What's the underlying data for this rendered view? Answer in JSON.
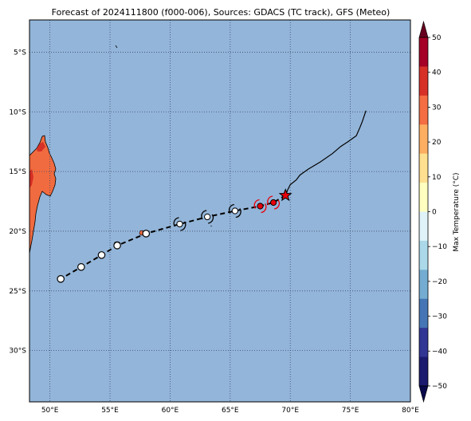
{
  "map": {
    "title": "Forecast of 2024111800 (f000-006), Sources: GDACS (TC track), GFS (Meteo)",
    "colors": {
      "ocean": "#93b5d9",
      "land_warm": "#f06b3f",
      "land_hot": "#d73027",
      "grid": "#3c4b6e",
      "track": "#000000",
      "current_marker": "#e8000b"
    },
    "extent": {
      "lon": [
        48.3,
        80
      ],
      "lat": [
        -34.3,
        -2.3
      ]
    },
    "lon_ticks": [
      {
        "value": 50,
        "label": "50°E"
      },
      {
        "value": 55,
        "label": "55°E"
      },
      {
        "value": 60,
        "label": "60°E"
      },
      {
        "value": 65,
        "label": "65°E"
      },
      {
        "value": 70,
        "label": "70°E"
      },
      {
        "value": 75,
        "label": "75°E"
      },
      {
        "value": 80,
        "label": "80°E"
      }
    ],
    "lat_ticks": [
      {
        "value": -5,
        "label": "5°S"
      },
      {
        "value": -10,
        "label": "10°S"
      },
      {
        "value": -15,
        "label": "15°S"
      },
      {
        "value": -20,
        "label": "20°S"
      },
      {
        "value": -25,
        "label": "25°S"
      },
      {
        "value": -30,
        "label": "30°S"
      }
    ],
    "observed_track": [
      [
        76.3,
        -9.9
      ],
      [
        76.0,
        -10.8
      ],
      [
        75.8,
        -11.3
      ],
      [
        75.5,
        -12.0
      ],
      [
        74.8,
        -12.5
      ],
      [
        74.2,
        -12.9
      ],
      [
        73.5,
        -13.5
      ],
      [
        72.5,
        -14.2
      ],
      [
        71.5,
        -14.8
      ],
      [
        70.8,
        -15.3
      ],
      [
        70.5,
        -15.7
      ],
      [
        70.0,
        -16.1
      ],
      [
        69.8,
        -16.5
      ],
      [
        69.6,
        -17.0
      ]
    ],
    "forecast_track": [
      [
        69.6,
        -17.0
      ],
      [
        68.6,
        -17.6
      ],
      [
        67.5,
        -17.9
      ],
      [
        65.4,
        -18.3
      ],
      [
        63.1,
        -18.8
      ],
      [
        60.8,
        -19.4
      ],
      [
        58.0,
        -20.2
      ],
      [
        55.6,
        -21.2
      ],
      [
        54.3,
        -22.0
      ],
      [
        52.6,
        -23.0
      ],
      [
        50.9,
        -24.0
      ]
    ],
    "current_position": {
      "lon": 69.6,
      "lat": -17.0,
      "symbol": "star"
    },
    "forecast_points": [
      {
        "lon": 68.6,
        "lat": -17.6,
        "category": "cyclone",
        "color": "red"
      },
      {
        "lon": 67.5,
        "lat": -17.9,
        "category": "cyclone",
        "color": "red"
      },
      {
        "lon": 65.4,
        "lat": -18.3,
        "category": "cyclone",
        "color": "white"
      },
      {
        "lon": 63.1,
        "lat": -18.8,
        "category": "cyclone",
        "color": "white"
      },
      {
        "lon": 60.8,
        "lat": -19.4,
        "category": "cyclone",
        "color": "white"
      },
      {
        "lon": 58.0,
        "lat": -20.2,
        "category": "low",
        "color": "white"
      },
      {
        "lon": 55.6,
        "lat": -21.2,
        "category": "low",
        "color": "white"
      },
      {
        "lon": 54.3,
        "lat": -22.0,
        "category": "low",
        "color": "white"
      },
      {
        "lon": 52.6,
        "lat": -23.0,
        "category": "low",
        "color": "white"
      },
      {
        "lon": 50.9,
        "lat": -24.0,
        "category": "low",
        "color": "white"
      }
    ]
  },
  "colorbar": {
    "label": "Max Temperature (°C)",
    "range": [
      -50,
      50
    ],
    "ticks": [
      "50",
      "40",
      "30",
      "20",
      "10",
      "0",
      "−10",
      "−20",
      "−30",
      "−40",
      "−50"
    ],
    "colors": [
      "#67001f",
      "#a50026",
      "#d73027",
      "#f46d43",
      "#fdae61",
      "#fee090",
      "#ffffbf",
      "#e0f3f8",
      "#abd9e9",
      "#74add1",
      "#4575b4",
      "#313695",
      "#1a1a6e",
      "#08084a"
    ]
  }
}
